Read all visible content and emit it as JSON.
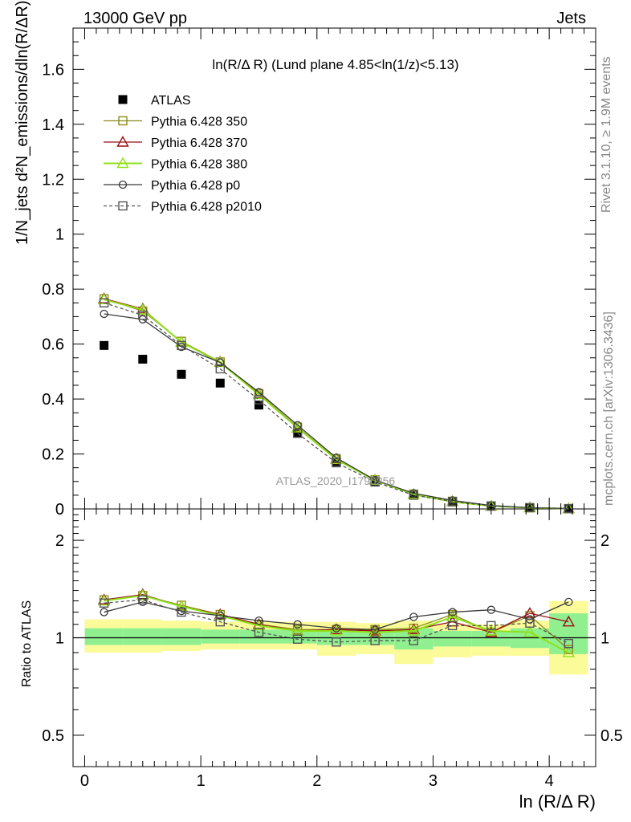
{
  "header": {
    "left": "13000 GeV pp",
    "right": "Jets",
    "plot_title": "ln(R/Δ R) (Lund plane 4.85<ln(1/z)<5.13)",
    "watermark": "ATLAS_2020_I1790256",
    "side_top": "Rivet 3.1.10, ≥ 1.9M events",
    "side_bottom": "mcplots.cern.ch [arXiv:1306.3436]"
  },
  "axes": {
    "ylabel_top": "1/N_jets d²N_emissions/dln(R/ΔR) dln(1/z)",
    "ylabel_ratio": "Ratio to ATLAS",
    "xlabel": "ln (R/Δ R)",
    "main_y_ticks": [
      "0",
      "0.2",
      "0.4",
      "0.6",
      "0.8",
      "1",
      "1.2",
      "1.4",
      "1.6"
    ],
    "ratio_y_ticks": [
      "0.5",
      "1",
      "2"
    ],
    "x_ticks": [
      "0",
      "1",
      "2",
      "3",
      "4"
    ]
  },
  "colors": {
    "atlas": "#000000",
    "p350": "#8d8d1e",
    "p370": "#9a0f14",
    "p380": "#8fe01a",
    "p0": "#3a3a3a",
    "p2010": "#555555",
    "band_inner": "#90f090",
    "band_outer": "#fbfb9a"
  },
  "chart_data": {
    "type": "scatter",
    "x": [
      0.167,
      0.5,
      0.833,
      1.167,
      1.5,
      1.833,
      2.167,
      2.5,
      2.833,
      3.167,
      3.5,
      3.833,
      4.167
    ],
    "main_ylim": [
      0,
      1.75
    ],
    "ratio_ylim": [
      0.4,
      2.5
    ],
    "xlim": [
      -0.1,
      4.4
    ],
    "series": [
      {
        "name": "ATLAS",
        "key": "atlas",
        "marker": "filled-square",
        "line": "none",
        "values": [
          0.595,
          0.545,
          0.49,
          0.458,
          0.378,
          0.275,
          0.172,
          0.1,
          0.05,
          0.025,
          0.01,
          0.004,
          0.001
        ],
        "ratio": [
          1,
          1,
          1,
          1,
          1,
          1,
          1,
          1,
          1,
          1,
          1,
          1,
          1
        ]
      },
      {
        "name": "Pythia 6.428 350",
        "key": "p350",
        "marker": "open-square",
        "line": "solid",
        "values": [
          0.765,
          0.72,
          0.61,
          0.535,
          0.42,
          0.298,
          0.183,
          0.106,
          0.054,
          0.028,
          0.0105,
          0.0047,
          0.0011
        ],
        "ratio": [
          1.31,
          1.35,
          1.26,
          1.18,
          1.1,
          1.06,
          1.06,
          1.06,
          1.07,
          1.18,
          1.04,
          1.17,
          0.92
        ]
      },
      {
        "name": "Pythia 6.428 370",
        "key": "p370",
        "marker": "open-triangle",
        "line": "solid",
        "values": [
          0.765,
          0.728,
          0.607,
          0.535,
          0.418,
          0.295,
          0.182,
          0.105,
          0.053,
          0.027,
          0.0104,
          0.0048,
          0.0012
        ],
        "ratio": [
          1.31,
          1.36,
          1.25,
          1.18,
          1.1,
          1.05,
          1.06,
          1.05,
          1.06,
          1.12,
          1.04,
          1.19,
          1.12
        ]
      },
      {
        "name": "Pythia 6.428 380",
        "key": "p380",
        "marker": "open-triangle",
        "line": "solid",
        "values": [
          0.762,
          0.725,
          0.607,
          0.533,
          0.416,
          0.295,
          0.18,
          0.104,
          0.053,
          0.026,
          0.0105,
          0.0042,
          0.001
        ],
        "ratio": [
          1.3,
          1.35,
          1.25,
          1.17,
          1.09,
          1.05,
          1.05,
          1.04,
          1.05,
          1.16,
          1.05,
          1.04,
          0.9
        ]
      },
      {
        "name": "Pythia 6.428 p0",
        "key": "p0",
        "marker": "open-circle",
        "line": "solid",
        "values": [
          0.71,
          0.69,
          0.59,
          0.533,
          0.425,
          0.305,
          0.186,
          0.105,
          0.057,
          0.031,
          0.0125,
          0.0046,
          0.0013
        ],
        "ratio": [
          1.2,
          1.29,
          1.21,
          1.17,
          1.13,
          1.1,
          1.07,
          1.06,
          1.16,
          1.2,
          1.22,
          1.14,
          1.29
        ]
      },
      {
        "name": "Pythia 6.428 p2010",
        "key": "p2010",
        "marker": "open-square",
        "line": "dashed",
        "values": [
          0.75,
          0.705,
          0.595,
          0.51,
          0.397,
          0.275,
          0.168,
          0.098,
          0.05,
          0.027,
          0.011,
          0.0045,
          0.001
        ],
        "ratio": [
          1.28,
          1.31,
          1.2,
          1.12,
          1.04,
          0.99,
          0.97,
          0.98,
          0.98,
          1.09,
          1.09,
          1.11,
          0.96
        ]
      }
    ],
    "ratio_band_outer": [
      [
        0.9,
        1.14
      ],
      [
        0.9,
        1.14
      ],
      [
        0.91,
        1.13
      ],
      [
        0.92,
        1.12
      ],
      [
        0.92,
        1.12
      ],
      [
        0.92,
        1.12
      ],
      [
        0.88,
        1.12
      ],
      [
        0.89,
        1.11
      ],
      [
        0.83,
        1.13
      ],
      [
        0.87,
        1.1
      ],
      [
        0.88,
        1.1
      ],
      [
        0.88,
        1.13
      ],
      [
        0.77,
        1.3
      ]
    ],
    "ratio_band_inner": [
      [
        0.95,
        1.07
      ],
      [
        0.95,
        1.07
      ],
      [
        0.95,
        1.07
      ],
      [
        0.96,
        1.06
      ],
      [
        0.96,
        1.06
      ],
      [
        0.96,
        1.06
      ],
      [
        0.95,
        1.06
      ],
      [
        0.95,
        1.06
      ],
      [
        0.92,
        1.07
      ],
      [
        0.94,
        1.05
      ],
      [
        0.94,
        1.05
      ],
      [
        0.93,
        1.07
      ],
      [
        0.89,
        1.19
      ]
    ]
  }
}
